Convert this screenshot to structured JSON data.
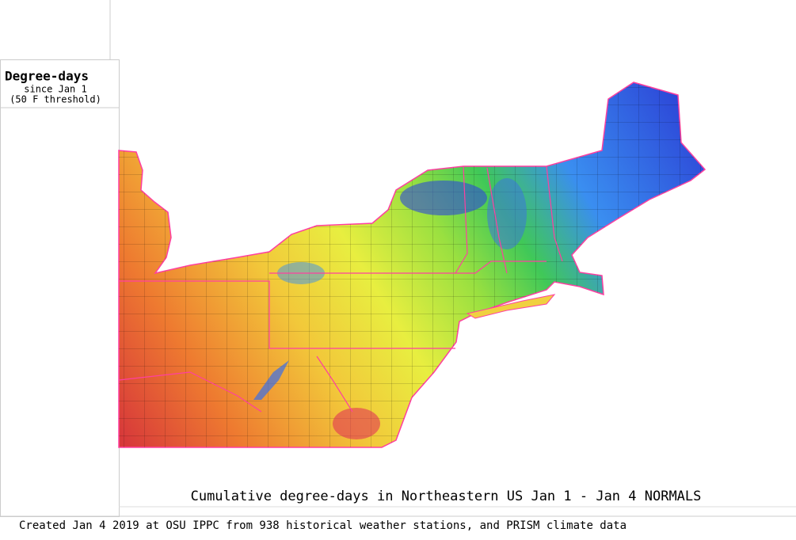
{
  "legend": {
    "title": "Degree-days",
    "subtitle": "since Jan 1",
    "threshold": "(50 F threshold)"
  },
  "caption": "Cumulative degree-days in Northeastern US Jan 1 - Jan 4 NORMALS",
  "footer": "Created Jan 4 2019 at OSU IPPC from 938 historical weather stations, and PRISM climate data"
}
